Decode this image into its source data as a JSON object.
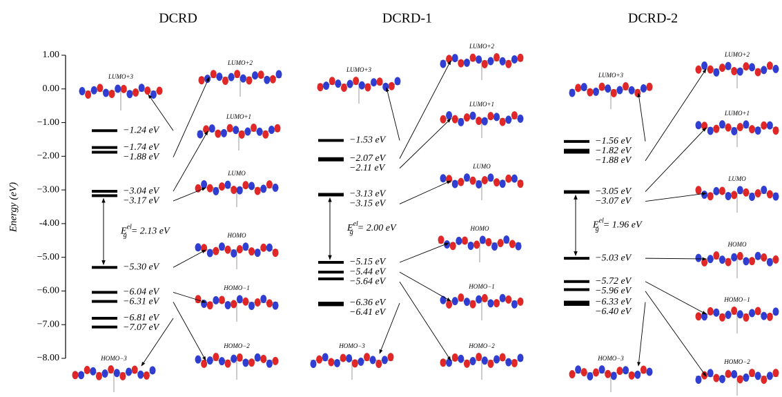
{
  "chart_data": {
    "type": "levels",
    "ylabel": "Energy (eV)",
    "ylim": [
      -8,
      1
    ],
    "yticks": [
      {
        "value": 1,
        "label": "1.00"
      },
      {
        "value": 0,
        "label": "0.00"
      },
      {
        "value": -1,
        "label": "−1.00"
      },
      {
        "value": -2,
        "label": "−2.00"
      },
      {
        "value": -3,
        "label": "−3.00"
      },
      {
        "value": -4,
        "label": "-4.00"
      },
      {
        "value": -5,
        "label": "−5.00"
      },
      {
        "value": -6,
        "label": "−6.00"
      },
      {
        "value": -7,
        "label": "−7.00"
      },
      {
        "value": -8,
        "label": "−8.00"
      }
    ],
    "color": "#000000",
    "panels": [
      {
        "title": "DCRD",
        "values": [
          -1.24,
          -1.74,
          -1.88,
          -3.04,
          -3.17,
          -5.3,
          -6.04,
          -6.31,
          -6.81,
          -7.07
        ],
        "value_labels": [
          "−1.24 eV",
          "−1.74 eV",
          "−1.88 eV",
          "−3.04 eV",
          "−3.17 eV",
          "−5.30 eV",
          "−6.04 eV",
          "−6.31 eV",
          "−6.81 eV",
          "−7.07 eV"
        ],
        "gap": {
          "symbol": "E",
          "sub": "g",
          "sup": "el",
          "text": "= 2.13 eV"
        },
        "orbitals": [
          "LUMO+3",
          "LUMO+2",
          "LUMO+1",
          "LUMO",
          "HOMO",
          "HOMO−1",
          "HOMO−2",
          "HOMO−3"
        ]
      },
      {
        "title": "DCRD-1",
        "values": [
          -1.53,
          -2.07,
          -2.11,
          -3.13,
          -3.15,
          -5.15,
          -5.44,
          -5.64,
          -6.36,
          -6.41
        ],
        "value_labels": [
          "−1.53 eV",
          "−2.07 eV",
          "−2.11 eV",
          "−3.13 eV",
          "−3.15 eV",
          "−5.15 eV",
          "−5.44 eV",
          "−5.64 eV",
          "−6.36 eV",
          "−6.41 eV"
        ],
        "gap": {
          "symbol": "E",
          "sub": "g",
          "sup": "el",
          "text": "= 2.00 eV"
        },
        "orbitals": [
          "LUMO+3",
          "LUMO+2",
          "LUMO+1",
          "LUMO",
          "HOMO",
          "HOMO−1",
          "HOMO−2",
          "HOMO−3"
        ]
      },
      {
        "title": "DCRD-2",
        "values": [
          -1.56,
          -1.82,
          -1.88,
          -3.05,
          -3.07,
          -5.03,
          -5.72,
          -5.96,
          -6.33,
          -6.4
        ],
        "value_labels": [
          "−1.56 eV",
          "−1.82 eV",
          "−1.88 eV",
          "−3.05 eV",
          "−3.07 eV",
          "−5.03 eV",
          "−5.72 eV",
          "−5.96 eV",
          "−6.33 eV",
          "−6.40 eV"
        ],
        "gap": {
          "symbol": "E",
          "sub": "g",
          "sup": "el",
          "text": "= 1.96 eV"
        },
        "orbitals": [
          "LUMO+3",
          "LUMO+2",
          "LUMO+1",
          "LUMO",
          "HOMO",
          "HOMO−1",
          "HOMO−2",
          "HOMO−3"
        ]
      }
    ]
  }
}
